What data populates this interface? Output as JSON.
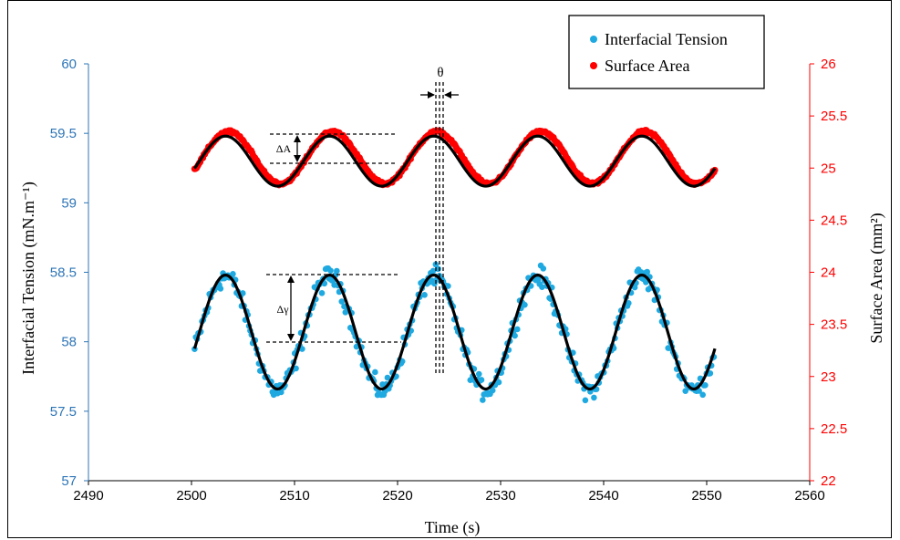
{
  "chart_data": {
    "type": "scatter",
    "title": "",
    "xlabel": "Time (s)",
    "ylabel_left": "Interfacial Tension (mN.m⁻¹)",
    "ylabel_right": "Surface Area (mm²)",
    "xlim": [
      2490,
      2560
    ],
    "ylim_left": [
      57,
      60
    ],
    "ylim_right": [
      22,
      26
    ],
    "x_ticks": [
      "2490",
      "2500",
      "2510",
      "2520",
      "2530",
      "2540",
      "2550",
      "2560"
    ],
    "y_left_ticks": [
      "57",
      "57.5",
      "58",
      "58.5",
      "59",
      "59.5",
      "60"
    ],
    "y_right_ticks": [
      "22",
      "22.5",
      "23",
      "23.5",
      "24",
      "24.5",
      "25",
      "25.5",
      "26"
    ],
    "grid": false,
    "legend_position": "top-right",
    "colors": {
      "tension": "#1fa9e1",
      "area": "#ff0000",
      "fit": "#000000",
      "left_axis": "#2e75b6",
      "right_axis": "#ff0000"
    },
    "series": [
      {
        "name": "Interfacial Tension",
        "axis": "left",
        "kind": "scatter",
        "offset": 58.06,
        "amplitude": 0.41,
        "period_s": 10.1,
        "peak_time_s": 2503.3,
        "x_range": [
          2500.3,
          2550.8
        ]
      },
      {
        "name": "Surface Area",
        "axis": "right",
        "kind": "scatter",
        "offset": 25.1,
        "amplitude": 0.25,
        "period_s": 10.1,
        "peak_time_s": 2503.6,
        "x_range": [
          2500.3,
          2550.8
        ]
      },
      {
        "axis": "left",
        "kind": "fit-line",
        "offset": 58.07,
        "amplitude": 0.41,
        "period_s": 10.1,
        "peak_time_s": 2503.3,
        "x_range": [
          2500.3,
          2550.8
        ]
      },
      {
        "axis": "left",
        "kind": "fit-line",
        "offset": 59.3,
        "amplitude": 0.18,
        "period_s": 10.1,
        "peak_time_s": 2503.3,
        "x_range": [
          2500.3,
          2550.8
        ]
      }
    ],
    "annotations": {
      "theta": "θ",
      "delta_a": "ΔA",
      "delta_gamma": "Δγ"
    }
  }
}
